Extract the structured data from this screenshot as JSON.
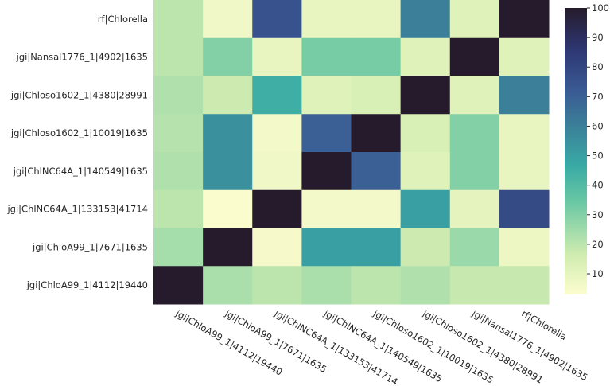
{
  "chart_data": {
    "type": "heatmap",
    "title": "",
    "xlabel": "",
    "ylabel": "",
    "y_categories": [
      "rf|Chlorella",
      "jgi|Nansal1776_1|4902|1635",
      "jgi|Chloso1602_1|4380|28991",
      "jgi|Chloso1602_1|10019|1635",
      "jgi|ChlNC64A_1|140549|1635",
      "jgi|ChlNC64A_1|133153|41714",
      "jgi|ChloA99_1|7671|1635",
      "jgi|ChloA99_1|4112|19440"
    ],
    "x_categories": [
      "jgi|ChloA99_1|4112|19440",
      "jgi|ChloA99_1|7671|1635",
      "jgi|ChlNC64A_1|133153|41714",
      "jgi|ChlNC64A_1|140549|1635",
      "jgi|Chloso1602_1|10019|1635",
      "jgi|Chloso1602_1|4380|28991",
      "jgi|Nansal1776_1|4902|1635",
      "rf|Chlorella"
    ],
    "values": [
      [
        20,
        7,
        75,
        9,
        9,
        60,
        12,
        100
      ],
      [
        20,
        30,
        9,
        32,
        32,
        12,
        100,
        12
      ],
      [
        22,
        17,
        45,
        12,
        14,
        100,
        12,
        60
      ],
      [
        21,
        55,
        6,
        70,
        100,
        14,
        30,
        9
      ],
      [
        22,
        55,
        7,
        100,
        70,
        12,
        30,
        9
      ],
      [
        20,
        4,
        100,
        6,
        6,
        50,
        10,
        78
      ],
      [
        24,
        100,
        5,
        50,
        50,
        17,
        26,
        8
      ],
      [
        100,
        23,
        20,
        23,
        20,
        22,
        18,
        18
      ]
    ],
    "colorbar": {
      "min": 3,
      "max": 100,
      "ticks": [
        10,
        20,
        30,
        40,
        50,
        60,
        70,
        80,
        90,
        100
      ],
      "colormap": "YlGnBu-like (yellow → green → teal → blue → near-black)",
      "stops": [
        "#fdfdcf",
        "#cfecb0",
        "#66c6a4",
        "#39aaa5",
        "#3b7f98",
        "#3a5a94",
        "#2e3875",
        "#261b2c"
      ]
    },
    "grid": false
  }
}
